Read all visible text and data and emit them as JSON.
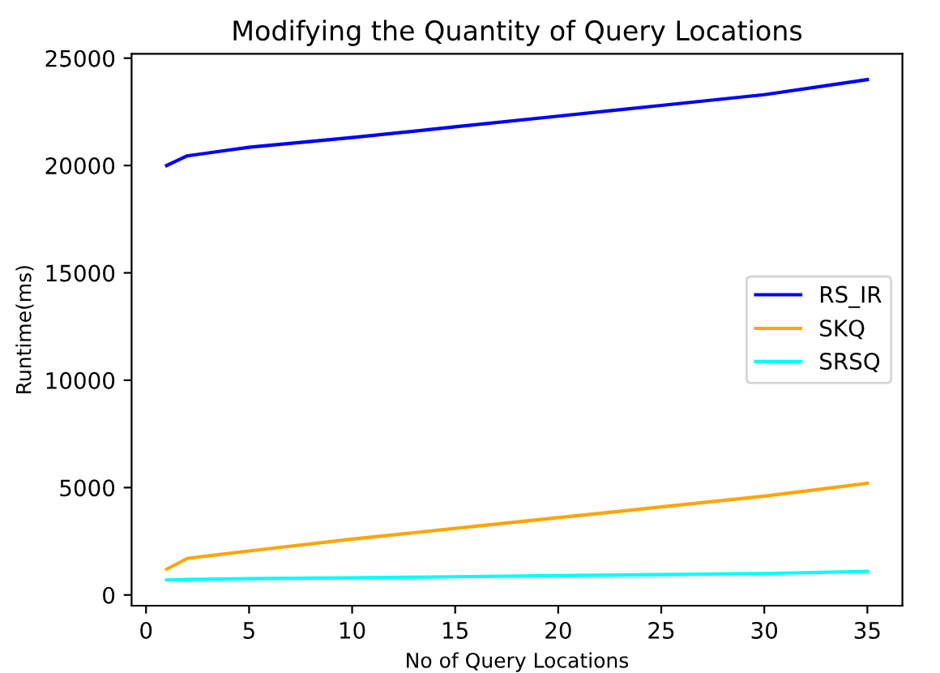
{
  "chart_data": {
    "type": "line",
    "title": "Modifying the Quantity of Query Locations",
    "xlabel": "No of Query Locations",
    "ylabel": "Runtime(ms)",
    "x": [
      1,
      2,
      5,
      10,
      15,
      20,
      25,
      30,
      35
    ],
    "series": [
      {
        "name": "RS_IR",
        "color": "#0000ff",
        "values": [
          20000,
          20450,
          20850,
          21300,
          21800,
          22300,
          22800,
          23300,
          24000
        ]
      },
      {
        "name": "SKQ",
        "color": "#ffa500",
        "values": [
          1200,
          1700,
          2050,
          2600,
          3100,
          3600,
          4100,
          4600,
          5200
        ]
      },
      {
        "name": "SRSQ",
        "color": "#00ffff",
        "values": [
          700,
          720,
          760,
          800,
          850,
          900,
          950,
          1000,
          1100
        ]
      }
    ],
    "xlim": [
      -0.7,
      36.7
    ],
    "ylim": [
      -500,
      25200
    ],
    "xticks": [
      0,
      5,
      10,
      15,
      20,
      25,
      30,
      35
    ],
    "yticks": [
      0,
      5000,
      10000,
      15000,
      20000,
      25000
    ],
    "legend": "right",
    "grid": false,
    "marker": "none",
    "line_style": "solid"
  }
}
